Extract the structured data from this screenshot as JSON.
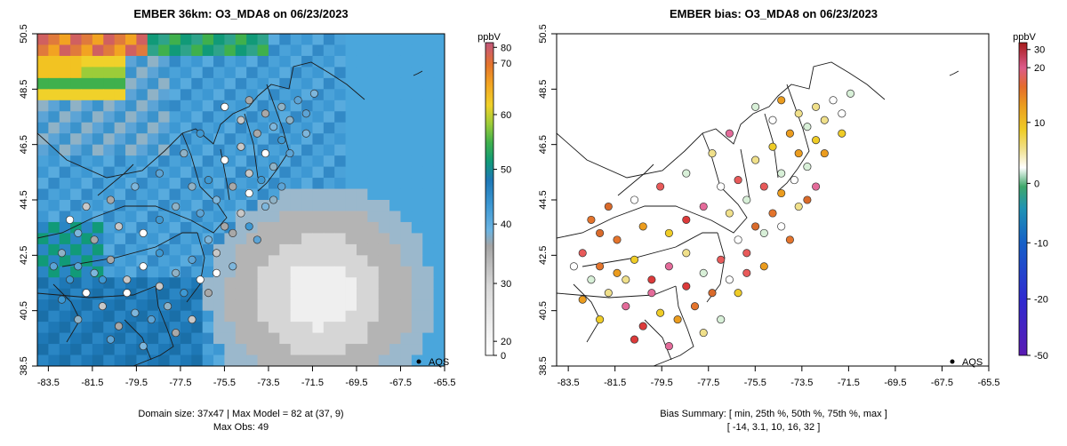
{
  "chart_data": [
    {
      "type": "heatmap",
      "title": "EMBER 36km: O3_MDA8 on 06/23/2023",
      "x_ticks": [
        "-83.5",
        "-81.5",
        "-79.5",
        "-77.5",
        "-75.5",
        "-73.5",
        "-71.5",
        "-69.5",
        "-67.5",
        "-65.5"
      ],
      "y_ticks": [
        "38.5",
        "40.5",
        "42.5",
        "44.5",
        "46.5",
        "48.5",
        "50.5"
      ],
      "xlim": [
        -84.0,
        -65.5
      ],
      "ylim": [
        38.5,
        50.5
      ],
      "grid": false,
      "colorbar": {
        "unit": "ppbV",
        "ticks": [
          "0",
          "20",
          "30",
          "40",
          "50",
          "60",
          "70",
          "80"
        ],
        "range": [
          0,
          82
        ]
      },
      "legend": {
        "marker_label": "AQS",
        "position": "bottom-right"
      },
      "footer_line1": "Domain size: 37x47 | Max Model = 82 at (37, 9)",
      "footer_line2": "Max Obs: 49",
      "stats": {
        "domain_cols": 37,
        "domain_rows": 47,
        "max_model": 82,
        "max_model_cell": "(37, 9)",
        "max_obs": 49
      }
    },
    {
      "type": "scatter",
      "title": "EMBER bias: O3_MDA8 on 06/23/2023",
      "x_ticks": [
        "-83.5",
        "-81.5",
        "-79.5",
        "-77.5",
        "-75.5",
        "-73.5",
        "-71.5",
        "-69.5",
        "-67.5",
        "-65.5"
      ],
      "y_ticks": [
        "38.5",
        "40.5",
        "42.5",
        "44.5",
        "46.5",
        "48.5",
        "50.5"
      ],
      "xlim": [
        -84.0,
        -65.5
      ],
      "ylim": [
        38.5,
        50.5
      ],
      "grid": false,
      "colorbar": {
        "unit": "ppbV",
        "ticks": [
          "-50",
          "-20",
          "-10",
          "0",
          "10",
          "20",
          "30"
        ],
        "range": [
          -50,
          32
        ]
      },
      "legend": {
        "marker_label": "AQS",
        "position": "bottom-right"
      },
      "footer_line1": "Bias Summary: [ min, 25th %, 50th %, 75th %, max ]",
      "footer_line2": "[ -14,   3.1,   10,   16,   32 ]",
      "bias_summary": {
        "min": -14,
        "p25": 3.1,
        "p50": 10,
        "p75": 16,
        "max": 32
      }
    }
  ]
}
